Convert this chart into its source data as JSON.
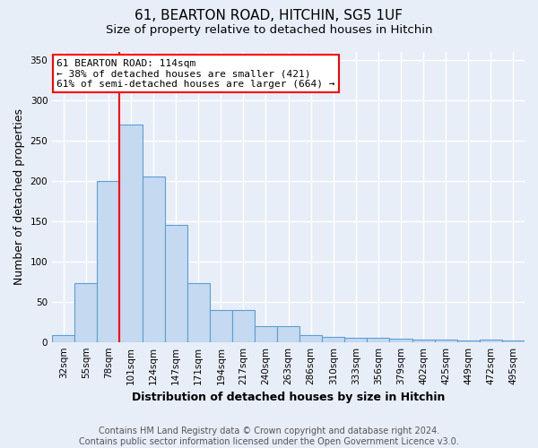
{
  "title_line1": "61, BEARTON ROAD, HITCHIN, SG5 1UF",
  "title_line2": "Size of property relative to detached houses in Hitchin",
  "xlabel": "Distribution of detached houses by size in Hitchin",
  "ylabel": "Number of detached properties",
  "categories": [
    "32sqm",
    "55sqm",
    "78sqm",
    "101sqm",
    "124sqm",
    "147sqm",
    "171sqm",
    "194sqm",
    "217sqm",
    "240sqm",
    "263sqm",
    "286sqm",
    "310sqm",
    "333sqm",
    "356sqm",
    "379sqm",
    "402sqm",
    "425sqm",
    "449sqm",
    "472sqm",
    "495sqm"
  ],
  "values": [
    8,
    73,
    200,
    270,
    205,
    145,
    73,
    40,
    40,
    20,
    20,
    8,
    6,
    5,
    5,
    4,
    3,
    3,
    2,
    3,
    2
  ],
  "bar_color": "#c5d9f0",
  "bar_edge_color": "#5a9fd4",
  "bar_width": 1.0,
  "red_line_x": 3.0,
  "annotation_text": "61 BEARTON ROAD: 114sqm\n← 38% of detached houses are smaller (421)\n61% of semi-detached houses are larger (664) →",
  "annotation_box_color": "white",
  "annotation_box_edge": "red",
  "ylim": [
    0,
    360
  ],
  "yticks": [
    0,
    50,
    100,
    150,
    200,
    250,
    300,
    350
  ],
  "footer_line1": "Contains HM Land Registry data © Crown copyright and database right 2024.",
  "footer_line2": "Contains public sector information licensed under the Open Government Licence v3.0.",
  "background_color": "#e8eef8",
  "grid_color": "#ffffff",
  "title_fontsize": 11,
  "subtitle_fontsize": 9.5,
  "axis_label_fontsize": 9,
  "tick_fontsize": 7.5,
  "footer_fontsize": 7,
  "annotation_fontsize": 8
}
